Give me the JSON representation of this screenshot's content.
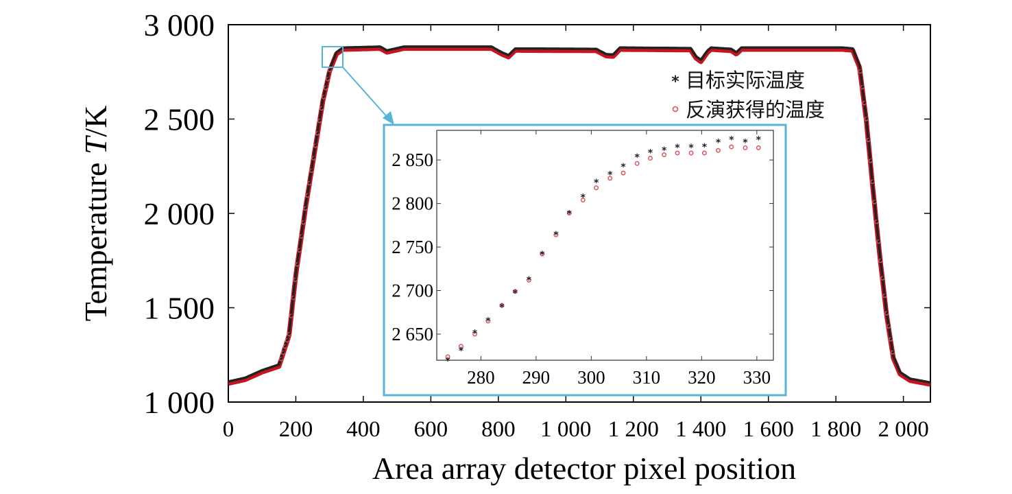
{
  "colors": {
    "actual": "#222222",
    "retrieved": "#e0505c",
    "retrieved_line": "#c8141e",
    "inset_frame": "#58b4d4",
    "axis": "#000000"
  },
  "chart_data": [
    {
      "type": "scatter",
      "xlabel": "Area array detector pixel position",
      "ylabel_main": "Temperature ",
      "ylabel_var": "T",
      "ylabel_unit": "/K",
      "xlim": [
        0,
        2080
      ],
      "ylim": [
        1000,
        3000
      ],
      "x_ticks": [
        0,
        200,
        400,
        600,
        800,
        1000,
        1200,
        1400,
        1600,
        1800,
        2000
      ],
      "x_tick_labels": [
        "0",
        "200",
        "400",
        "600",
        "800",
        "1 000",
        "1 200",
        "1 400",
        "1 600",
        "1 800",
        "2 000"
      ],
      "y_ticks": [
        1000,
        1500,
        2000,
        2500,
        3000
      ],
      "y_tick_labels": [
        "1 000",
        "1 500",
        "2 000",
        "2 500",
        "3 000"
      ],
      "legend": {
        "position": "top-right",
        "entries": [
          {
            "marker": "*",
            "label": "目标实际温度"
          },
          {
            "marker": "o",
            "label": "反演获得的温度"
          }
        ]
      },
      "profile_points": [
        [
          0,
          1105
        ],
        [
          50,
          1125
        ],
        [
          100,
          1165
        ],
        [
          150,
          1195
        ],
        [
          180,
          1360
        ],
        [
          200,
          1680
        ],
        [
          230,
          2050
        ],
        [
          260,
          2380
        ],
        [
          280,
          2600
        ],
        [
          300,
          2760
        ],
        [
          320,
          2850
        ],
        [
          340,
          2875
        ],
        [
          450,
          2880
        ],
        [
          470,
          2860
        ],
        [
          490,
          2868
        ],
        [
          520,
          2880
        ],
        [
          780,
          2880
        ],
        [
          810,
          2850
        ],
        [
          830,
          2835
        ],
        [
          850,
          2870
        ],
        [
          1090,
          2868
        ],
        [
          1120,
          2840
        ],
        [
          1140,
          2838
        ],
        [
          1160,
          2875
        ],
        [
          1370,
          2872
        ],
        [
          1385,
          2830
        ],
        [
          1400,
          2810
        ],
        [
          1420,
          2860
        ],
        [
          1430,
          2875
        ],
        [
          1490,
          2868
        ],
        [
          1505,
          2850
        ],
        [
          1520,
          2875
        ],
        [
          1820,
          2875
        ],
        [
          1850,
          2870
        ],
        [
          1870,
          2780
        ],
        [
          1890,
          2500
        ],
        [
          1910,
          2130
        ],
        [
          1930,
          1780
        ],
        [
          1950,
          1470
        ],
        [
          1970,
          1240
        ],
        [
          1990,
          1155
        ],
        [
          2020,
          1120
        ],
        [
          2080,
          1100
        ]
      ],
      "series": [
        {
          "name": "目标实际温度",
          "marker": "*"
        },
        {
          "name": "反演获得的温度",
          "marker": "o"
        }
      ]
    },
    {
      "type": "scatter",
      "xlim": [
        272,
        333
      ],
      "ylim": [
        2620,
        2884
      ],
      "x_ticks": [
        280,
        290,
        300,
        310,
        320,
        330
      ],
      "y_ticks": [
        2650,
        2700,
        2750,
        2800,
        2850
      ],
      "y_tick_labels": [
        "2 650",
        "2 700",
        "2 750",
        "2 800",
        "2 850"
      ],
      "series": [
        {
          "name": "目标实际温度",
          "marker": "*",
          "x": [
            274,
            276.4,
            278.9,
            281.3,
            283.8,
            286.2,
            288.7,
            291.1,
            293.6,
            296,
            298.5,
            300.9,
            303.4,
            305.8,
            308.3,
            310.7,
            313.2,
            315.6,
            318.1,
            320.5,
            323,
            325.4,
            327.9,
            330.3
          ],
          "y": [
            2620,
            2632,
            2652,
            2666,
            2682,
            2698,
            2713,
            2742,
            2765,
            2789,
            2808,
            2825,
            2834,
            2843,
            2854,
            2859,
            2862,
            2865,
            2865,
            2866,
            2871,
            2874,
            2871,
            2874
          ]
        },
        {
          "name": "反演获得的温度",
          "marker": "o",
          "x": [
            274,
            276.4,
            278.9,
            281.3,
            283.8,
            286.2,
            288.7,
            291.1,
            293.6,
            296,
            298.5,
            300.9,
            303.4,
            305.8,
            308.3,
            310.7,
            313.2,
            315.6,
            318.1,
            320.5,
            323,
            325.4,
            327.9,
            330.3
          ],
          "y": [
            2624,
            2636,
            2650,
            2665,
            2683,
            2699,
            2712,
            2742,
            2764,
            2789,
            2804,
            2818,
            2829,
            2835,
            2846,
            2852,
            2856,
            2858,
            2858,
            2858,
            2861,
            2865,
            2864,
            2864
          ]
        }
      ]
    }
  ]
}
